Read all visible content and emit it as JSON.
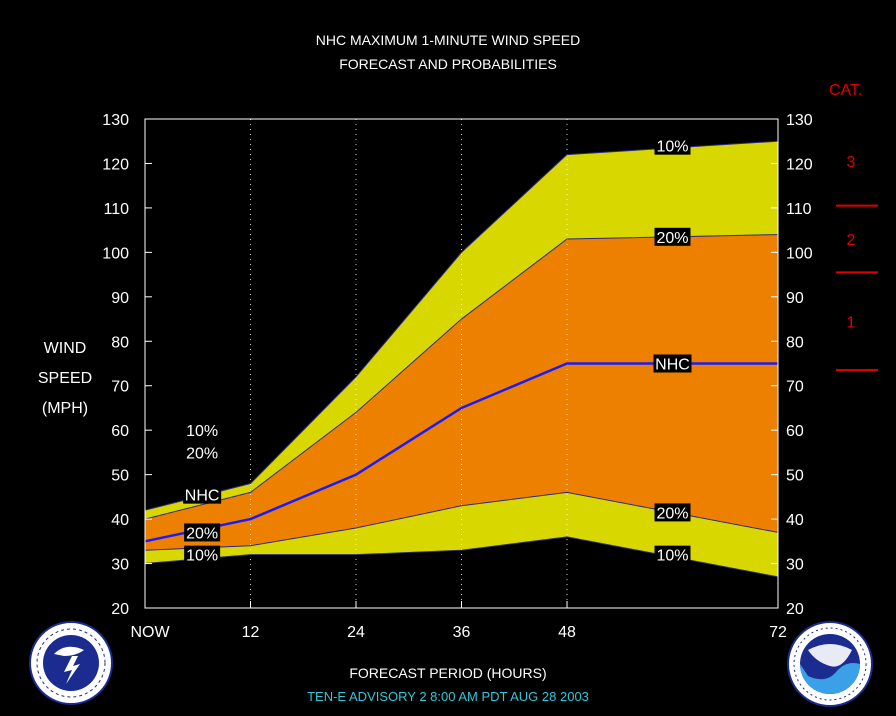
{
  "title_line1": "NHC MAXIMUM 1-MINUTE WIND SPEED",
  "title_line2": "FORECAST AND PROBABILITIES",
  "ylabel_lines": [
    "WIND",
    "SPEED",
    "(MPH)"
  ],
  "xlabel": "FORECAST PERIOD (HOURS)",
  "advisory": "TEN-E   ADVISORY  2 8:00  AM  PDT  AUG 28  2003",
  "category_title": "CAT.",
  "categories": [
    {
      "label": "3",
      "band_mph": [
        111,
        130
      ]
    },
    {
      "label": "2",
      "band_mph": [
        96,
        110
      ]
    },
    {
      "label": "1",
      "band_mph": [
        74,
        95
      ]
    }
  ],
  "category_boundaries_mph": [
    110.5,
    95.5,
    73.5
  ],
  "colors": {
    "background": "#000000",
    "outer_band": "#d8d800",
    "inner_band": "#ee8000",
    "nhc_line": "#1a1aff",
    "category_red": "#e00000",
    "footer_cyan": "#33c6d6"
  },
  "logos": [
    "nws-logo",
    "noaa-logo"
  ],
  "chart_data": {
    "type": "area",
    "x": [
      0,
      12,
      24,
      36,
      48,
      72
    ],
    "x_tick_labels": [
      "NOW",
      "12",
      "24",
      "36",
      "48",
      "72"
    ],
    "xlim": [
      0,
      72
    ],
    "ylim": [
      20,
      130
    ],
    "y_ticks": [
      20,
      30,
      40,
      50,
      60,
      70,
      80,
      90,
      100,
      110,
      120,
      130
    ],
    "grid": "vertical dotted lines at 12, 24, 36, 48",
    "series": [
      {
        "name": "10%",
        "role": "upper",
        "values": [
          42,
          48,
          72,
          100,
          122,
          125
        ]
      },
      {
        "name": "20%",
        "role": "upper",
        "values": [
          40,
          46,
          64,
          85,
          103,
          104
        ]
      },
      {
        "name": "NHC",
        "values": [
          35,
          40,
          50,
          65,
          75,
          75
        ]
      },
      {
        "name": "20%",
        "role": "lower",
        "values": [
          33,
          34,
          38,
          43,
          46,
          37
        ]
      },
      {
        "name": "10%",
        "role": "lower",
        "values": [
          30,
          32,
          32,
          33,
          36,
          27
        ]
      }
    ],
    "labels": [
      {
        "text": "10%",
        "x": 6.5,
        "y": 60
      },
      {
        "text": "20%",
        "x": 6.5,
        "y": 55
      },
      {
        "text": "NHC",
        "x": 6.5,
        "y": 45.5
      },
      {
        "text": "20%",
        "x": 6.5,
        "y": 37
      },
      {
        "text": "10%",
        "x": 6.5,
        "y": 32
      },
      {
        "text": "10%",
        "x": 60,
        "y": 124
      },
      {
        "text": "20%",
        "x": 60,
        "y": 103.5
      },
      {
        "text": "NHC",
        "x": 60,
        "y": 75
      },
      {
        "text": "20%",
        "x": 60,
        "y": 41.5
      },
      {
        "text": "10%",
        "x": 60,
        "y": 32
      }
    ]
  }
}
